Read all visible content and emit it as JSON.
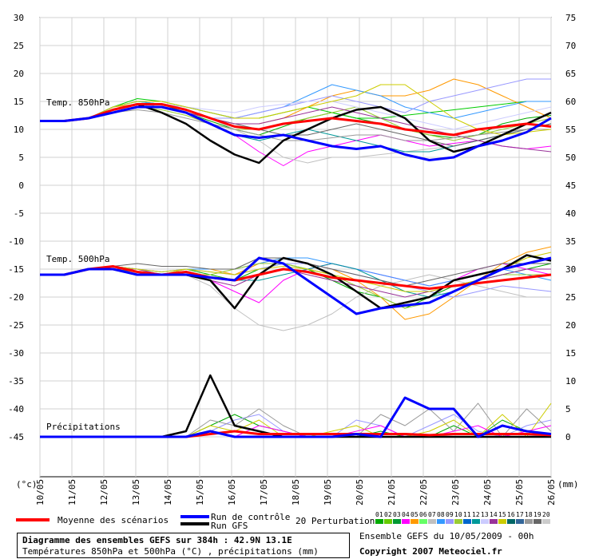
{
  "chart_data": {
    "type": "line",
    "title": "Diagramme des ensembles GEFS sur 384h : 42.9N 13.1E",
    "subtitle": "Températures 850hPa et 500hPa (°C) , précipitations (mm)",
    "left_axis": {
      "unit_label": "(°c)",
      "ticks": [
        "30",
        "25",
        "20",
        "15",
        "10",
        "5",
        "0",
        "-5",
        "-10",
        "-15",
        "-20",
        "-25",
        "-30",
        "-35",
        "-40",
        "-45"
      ]
    },
    "right_axis": {
      "unit_label": "(mm)",
      "ticks": [
        "75",
        "70",
        "65",
        "60",
        "55",
        "50",
        "45",
        "40",
        "35",
        "30",
        "25",
        "20",
        "15",
        "10",
        "5",
        "0"
      ]
    },
    "x_labels": [
      "10/05",
      "11/05",
      "12/05",
      "13/05",
      "14/05",
      "15/05",
      "16/05",
      "17/05",
      "18/05",
      "19/05",
      "20/05",
      "21/05",
      "22/05",
      "23/05",
      "24/05",
      "25/05",
      "26/05"
    ],
    "grid": true,
    "annotations": {
      "t850": "Temp. 850hPa",
      "t500": "Temp. 500hPa",
      "precip": "Précipitations"
    },
    "series_t850": [
      {
        "name": "Moyenne des scénarios",
        "color": "#ff0000",
        "width": 3,
        "values": [
          11.5,
          11.5,
          12,
          13.5,
          14.5,
          14.5,
          13.5,
          12,
          10.5,
          10,
          11,
          11.5,
          12,
          11.5,
          11,
          10,
          9.5,
          9,
          10,
          10.5,
          11,
          10.5
        ]
      },
      {
        "name": "Run de contrôle",
        "color": "#0000ff",
        "width": 3,
        "values": [
          11.5,
          11.5,
          12,
          13,
          14,
          14,
          13,
          11,
          9,
          8.5,
          9,
          8,
          7,
          6.5,
          7,
          5.5,
          4.5,
          5,
          7,
          8,
          9.5,
          12
        ]
      },
      {
        "name": "Run GFS",
        "color": "#000000",
        "width": 2.5,
        "values": [
          11.5,
          11.5,
          12,
          13.5,
          14.5,
          13,
          11,
          8,
          5.5,
          4,
          8,
          10,
          12,
          13.5,
          14,
          12,
          8,
          6,
          7,
          9,
          11,
          13
        ]
      },
      {
        "name": "01",
        "color": "#00aa00",
        "width": 1,
        "values": [
          11.5,
          11.5,
          12,
          14,
          15,
          14.5,
          13,
          11.5,
          10,
          9,
          10.5,
          12,
          13,
          12,
          11,
          10,
          9,
          8.5,
          9,
          11,
          12,
          12.5
        ]
      },
      {
        "name": "02",
        "color": "#00cc00",
        "width": 1,
        "values": [
          11.5,
          11.5,
          12,
          14,
          15.5,
          15,
          14,
          13,
          12,
          12,
          13,
          14,
          13,
          12,
          12,
          12.5,
          13,
          13.5,
          14,
          14.5,
          15,
          15
        ]
      },
      {
        "name": "03",
        "color": "#ff00ff",
        "width": 1,
        "values": [
          11.5,
          11.5,
          12,
          13.5,
          14,
          14,
          13,
          11,
          9,
          6,
          3.5,
          6,
          7,
          8,
          9,
          8,
          7,
          7.5,
          8,
          7,
          6.5,
          7
        ]
      },
      {
        "name": "04",
        "color": "#ff9900",
        "width": 1,
        "values": [
          11.5,
          11.5,
          12,
          14,
          14.5,
          14,
          13,
          12,
          11,
          11,
          12,
          14,
          16,
          17,
          16,
          16,
          17,
          19,
          18,
          16,
          14,
          12
        ]
      },
      {
        "name": "05",
        "color": "#c0c0c0",
        "width": 1,
        "values": [
          11.5,
          11.5,
          12,
          13,
          14,
          14,
          13,
          12,
          10,
          8,
          5,
          4,
          5,
          5,
          5.5,
          6,
          6.5,
          7,
          8,
          9,
          10,
          11
        ]
      },
      {
        "name": "06",
        "color": "#3399ff",
        "width": 1,
        "values": [
          11.5,
          11.5,
          12,
          14,
          15,
          14.5,
          14,
          13,
          12,
          13,
          14,
          16,
          18,
          17,
          16,
          14,
          13,
          12,
          13,
          14,
          15,
          15
        ]
      },
      {
        "name": "07",
        "color": "#9999ff",
        "width": 1,
        "values": [
          11.5,
          11.5,
          12,
          13.5,
          14.5,
          14,
          13,
          12,
          12,
          13,
          14,
          15,
          16,
          15,
          14,
          13,
          15,
          16,
          17,
          18,
          19,
          19
        ]
      },
      {
        "name": "08",
        "color": "#99cc33",
        "width": 1,
        "values": [
          11.5,
          11.5,
          12,
          13.5,
          14,
          13.5,
          12.5,
          11,
          10,
          10,
          11,
          12,
          13,
          14,
          12,
          10,
          9,
          8,
          9,
          10,
          11,
          12
        ]
      },
      {
        "name": "09",
        "color": "#009999",
        "width": 1,
        "values": [
          11.5,
          11.5,
          12,
          13.5,
          14.5,
          14,
          13,
          11,
          9,
          8,
          9,
          10,
          9,
          8,
          7,
          6,
          6,
          7,
          8,
          9,
          10,
          11
        ]
      },
      {
        "name": "10",
        "color": "#666666",
        "width": 1,
        "values": [
          11.5,
          11.5,
          12,
          13,
          14,
          14,
          13,
          12,
          11,
          10,
          9,
          9,
          10,
          11,
          10,
          9,
          8,
          7,
          8,
          9,
          10,
          11
        ]
      },
      {
        "name": "11",
        "color": "#993399",
        "width": 1,
        "values": [
          11.5,
          11.5,
          12,
          13.5,
          14,
          14,
          13,
          12,
          11,
          11,
          12,
          13,
          14,
          13,
          12,
          11,
          10,
          9,
          8,
          7,
          6.5,
          6
        ]
      },
      {
        "name": "12",
        "color": "#999999",
        "width": 1,
        "values": [
          11.5,
          11.5,
          12,
          13,
          13.5,
          13,
          12,
          11,
          10,
          9,
          8,
          8,
          8.5,
          9,
          9,
          8,
          8,
          8.5,
          9,
          9.5,
          10,
          10
        ]
      },
      {
        "name": "13",
        "color": "#ccccff",
        "width": 1,
        "values": [
          11.5,
          11.5,
          12,
          13.5,
          14,
          14.5,
          14,
          13.5,
          13,
          14,
          14.5,
          15,
          15,
          14,
          13,
          12,
          11,
          10,
          11,
          12,
          13,
          14
        ]
      },
      {
        "name": "14",
        "color": "#cccc00",
        "width": 1,
        "values": [
          11.5,
          11.5,
          12,
          14,
          15,
          15,
          14,
          13,
          12,
          12,
          13,
          14,
          15,
          16,
          18,
          18,
          15,
          12,
          10,
          9,
          9.5,
          10
        ]
      }
    ],
    "series_t500": [
      {
        "name": "Moyenne des scénarios",
        "color": "#ff0000",
        "width": 3,
        "values": [
          -16,
          -16,
          -15,
          -14.5,
          -15.5,
          -16,
          -15.5,
          -16.5,
          -17,
          -16,
          -15,
          -15.5,
          -16.5,
          -17,
          -17.5,
          -18,
          -18.5,
          -18,
          -17.5,
          -17,
          -16.5,
          -16
        ]
      },
      {
        "name": "Run de contrôle",
        "color": "#0000ff",
        "width": 3,
        "values": [
          -16,
          -16,
          -15,
          -15,
          -16,
          -16,
          -16,
          -16.5,
          -17,
          -13,
          -14,
          -17,
          -20,
          -23,
          -22,
          -21.5,
          -21,
          -19,
          -17,
          -15,
          -14,
          -13
        ]
      },
      {
        "name": "Run GFS",
        "color": "#000000",
        "width": 2.5,
        "values": [
          -16,
          -16,
          -15,
          -15,
          -16,
          -16,
          -16,
          -17,
          -22,
          -16,
          -13,
          -14,
          -16,
          -19,
          -22,
          -21,
          -20,
          -17,
          -16,
          -15,
          -12.5,
          -13.5
        ]
      },
      {
        "name": "01",
        "color": "#00aa00",
        "width": 1,
        "values": [
          -16,
          -16,
          -15,
          -14.5,
          -15,
          -16,
          -15,
          -16,
          -17,
          -15,
          -14,
          -15,
          -17,
          -19,
          -20,
          -22,
          -20,
          -18,
          -17,
          -16,
          -15,
          -14
        ]
      },
      {
        "name": "02",
        "color": "#ff00ff",
        "width": 1,
        "values": [
          -16,
          -16,
          -15,
          -14.5,
          -15,
          -16,
          -16,
          -17,
          -19,
          -21,
          -17,
          -15,
          -14,
          -15,
          -16,
          -17,
          -18,
          -17,
          -15,
          -14,
          -15,
          -16
        ]
      },
      {
        "name": "03",
        "color": "#ff9900",
        "width": 1,
        "values": [
          -16,
          -16,
          -15,
          -15,
          -15.5,
          -16,
          -15,
          -15,
          -16,
          -14,
          -13,
          -14,
          -15,
          -17,
          -20,
          -24,
          -23,
          -20,
          -17,
          -14,
          -12,
          -11
        ]
      },
      {
        "name": "04",
        "color": "#c0c0c0",
        "width": 1,
        "values": [
          -16,
          -16,
          -15,
          -15,
          -15.5,
          -16,
          -16,
          -18,
          -22,
          -25,
          -26,
          -25,
          -23,
          -20,
          -18,
          -17,
          -16,
          -17,
          -18,
          -19,
          -20,
          -20
        ]
      },
      {
        "name": "05",
        "color": "#3399ff",
        "width": 1,
        "values": [
          -16,
          -16,
          -15,
          -14.5,
          -15,
          -15.5,
          -15,
          -15,
          -15,
          -14,
          -13,
          -13,
          -14,
          -15,
          -16,
          -17,
          -18,
          -17,
          -16,
          -15,
          -16,
          -17
        ]
      },
      {
        "name": "06",
        "color": "#9999ff",
        "width": 1,
        "values": [
          -16,
          -16,
          -15,
          -14.5,
          -15,
          -15.5,
          -15,
          -15.5,
          -16,
          -15,
          -14,
          -14,
          -15,
          -16,
          -17,
          -18,
          -19,
          -20,
          -19,
          -18,
          -18.5,
          -19
        ]
      },
      {
        "name": "07",
        "color": "#99cc33",
        "width": 1,
        "values": [
          -16,
          -16,
          -15,
          -15,
          -15,
          -16,
          -16,
          -16,
          -15,
          -14,
          -14,
          -15,
          -16,
          -18,
          -20,
          -22,
          -21,
          -19,
          -17,
          -16,
          -16,
          -16
        ]
      },
      {
        "name": "08",
        "color": "#009999",
        "width": 1,
        "values": [
          -16,
          -16,
          -15,
          -15,
          -15.5,
          -16,
          -16,
          -16.5,
          -17,
          -17,
          -16,
          -15,
          -14,
          -15,
          -17,
          -19,
          -20,
          -19,
          -17,
          -15,
          -14,
          -13
        ]
      },
      {
        "name": "09",
        "color": "#666666",
        "width": 1,
        "values": [
          -16,
          -16,
          -15,
          -14.5,
          -14,
          -14.5,
          -14.5,
          -15,
          -15,
          -13,
          -13,
          -14,
          -15,
          -16,
          -17,
          -18,
          -17,
          -16,
          -15,
          -14,
          -14,
          -14
        ]
      },
      {
        "name": "10",
        "color": "#993399",
        "width": 1,
        "values": [
          -16,
          -16,
          -15,
          -15,
          -15,
          -16,
          -16,
          -17,
          -18,
          -16,
          -15,
          -16,
          -17,
          -18,
          -19,
          -20,
          -19,
          -18,
          -17,
          -16,
          -15,
          -15
        ]
      },
      {
        "name": "11",
        "color": "#cccc00",
        "width": 1,
        "values": [
          -16,
          -16,
          -15,
          -14.5,
          -15,
          -15.5,
          -15,
          -15.5,
          -16,
          -15,
          -14.5,
          -15,
          -16,
          -17,
          -18,
          -19,
          -19,
          -18,
          -17,
          -15,
          -13,
          -12
        ]
      }
    ],
    "series_precip": [
      {
        "name": "Moyenne des scénarios",
        "color": "#ff0000",
        "width": 3,
        "values": [
          0,
          0,
          0,
          0,
          0,
          0,
          0,
          0.5,
          1,
          0.5,
          0.5,
          0.5,
          0.5,
          0.5,
          0.5,
          0.5,
          0.3,
          0.5,
          0.5,
          0.5,
          0.5,
          0.3
        ]
      },
      {
        "name": "Run de contrôle",
        "color": "#0000ff",
        "width": 3,
        "values": [
          0,
          0,
          0,
          0,
          0,
          0,
          0,
          1,
          0,
          0,
          0,
          0,
          0,
          0.5,
          0,
          7,
          5,
          5,
          0,
          2,
          1,
          0.5
        ]
      },
      {
        "name": "Run GFS",
        "color": "#000000",
        "width": 2.5,
        "values": [
          0,
          0,
          0,
          0,
          0,
          0,
          1,
          11,
          2,
          1,
          0,
          0,
          0,
          0,
          0,
          0,
          0,
          0,
          0,
          0,
          0,
          0
        ]
      },
      {
        "name": "01",
        "color": "#00aa00",
        "width": 1,
        "values": [
          0,
          0,
          0,
          0,
          0,
          0,
          0,
          2,
          4,
          2,
          1,
          0,
          0,
          0,
          1,
          0,
          0,
          2,
          0,
          3,
          1,
          0
        ]
      },
      {
        "name": "02",
        "color": "#9999ff",
        "width": 1,
        "values": [
          0,
          0,
          0,
          0,
          0,
          0,
          0,
          1,
          3,
          4,
          1,
          0,
          0,
          3,
          2,
          0,
          2,
          4,
          1,
          0,
          2,
          3
        ]
      },
      {
        "name": "03",
        "color": "#999999",
        "width": 1,
        "values": [
          0,
          0,
          0,
          0,
          0,
          0,
          0,
          3,
          2,
          5,
          2,
          0,
          0,
          0,
          4,
          2,
          5,
          1,
          6,
          0,
          5,
          1
        ]
      },
      {
        "name": "04",
        "color": "#cccc00",
        "width": 1,
        "values": [
          0,
          0,
          0,
          0,
          0,
          0,
          0,
          2,
          1,
          3,
          0,
          0,
          1,
          2,
          0,
          0,
          1,
          3,
          0,
          4,
          0,
          6
        ]
      },
      {
        "name": "05",
        "color": "#ff00ff",
        "width": 1,
        "values": [
          0,
          0,
          0,
          0,
          0,
          0,
          0,
          1,
          0,
          2,
          1,
          0,
          0,
          1,
          2,
          0,
          0,
          1,
          2,
          0,
          1,
          2
        ]
      }
    ],
    "legend": {
      "mean": "Moyenne des scénarios",
      "control": "Run de contrôle",
      "gfs": "Run GFS",
      "perturbations": "20 Perturbations",
      "pert_numbers": [
        "01",
        "02",
        "03",
        "04",
        "05",
        "06",
        "07",
        "08",
        "09",
        "10",
        "11",
        "12",
        "13",
        "14",
        "15",
        "16",
        "17",
        "18",
        "19",
        "20"
      ],
      "pert_colors": [
        "#00aa00",
        "#66cc00",
        "#009933",
        "#ff00ff",
        "#ff9900",
        "#66ff66",
        "#c0c0c0",
        "#3399ff",
        "#9999ff",
        "#99cc33",
        "#0066cc",
        "#009999",
        "#ccccff",
        "#993399",
        "#cccc00",
        "#006666",
        "#336699",
        "#999999",
        "#666666",
        "#cccccc"
      ]
    }
  },
  "footer": {
    "title": "Diagramme des ensembles GEFS sur 384h : 42.9N 13.1E",
    "subtitle": "Températures 850hPa et 500hPa (°C) , précipitations (mm)",
    "ensemble_info": "Ensemble GEFS du 10/05/2009 - 00h",
    "copyright": "Copyright 2007 Meteociel.fr"
  }
}
